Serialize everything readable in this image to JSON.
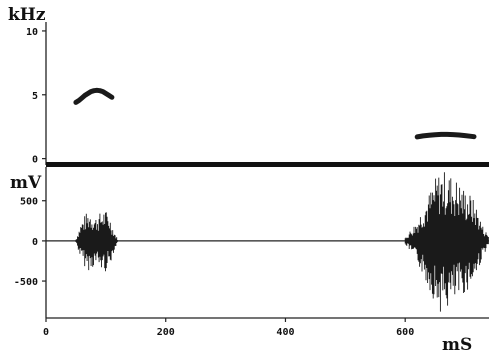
{
  "chart_data": [
    {
      "type": "scatter",
      "title": "",
      "unit_label": "kHz",
      "xlim": [
        0,
        740
      ],
      "ylim": [
        -0.5,
        10.7
      ],
      "y_ticks": [
        {
          "value": 10,
          "label": "10"
        },
        {
          "value": 5,
          "label": "5"
        },
        {
          "value": 0,
          "label": "0"
        }
      ],
      "grid": false,
      "color": "#1a1a1a",
      "series": [
        {
          "x": [
            50,
            55,
            60,
            65,
            70,
            75,
            80,
            85,
            90,
            95,
            100,
            105,
            110
          ],
          "y": [
            4.4,
            4.55,
            4.75,
            4.95,
            5.1,
            5.25,
            5.32,
            5.35,
            5.32,
            5.25,
            5.1,
            4.95,
            4.8
          ]
        },
        {
          "x": [
            620,
            630,
            640,
            650,
            660,
            670,
            680,
            690,
            700,
            710,
            715
          ],
          "y": [
            1.7,
            1.78,
            1.83,
            1.87,
            1.9,
            1.9,
            1.88,
            1.85,
            1.8,
            1.75,
            1.72
          ]
        }
      ]
    },
    {
      "type": "line",
      "title": "",
      "unit_label": "mV",
      "xlabel": "mS",
      "xlim": [
        0,
        740
      ],
      "ylim": [
        -960,
        920
      ],
      "y_ticks": [
        {
          "value": 500,
          "label": "500"
        },
        {
          "value": 0,
          "label": "0"
        },
        {
          "value": -500,
          "label": "-500"
        }
      ],
      "x_ticks": [
        {
          "value": 0,
          "label": "0"
        },
        {
          "value": 200,
          "label": "200"
        },
        {
          "value": 400,
          "label": "400"
        },
        {
          "value": 600,
          "label": "600"
        }
      ],
      "grid": false,
      "color": "#1a1a1a",
      "segments": [
        {
          "x": [
            50,
            58,
            66,
            74,
            82,
            90,
            98,
            106,
            114,
            120
          ],
          "amplitude": [
            20,
            220,
            340,
            380,
            300,
            350,
            400,
            320,
            120,
            20
          ]
        },
        {
          "x": [
            600,
            610,
            620,
            630,
            640,
            650,
            660,
            670,
            680,
            690,
            700,
            710,
            720,
            730,
            740
          ],
          "amplitude": [
            40,
            150,
            260,
            450,
            600,
            780,
            900,
            860,
            820,
            740,
            650,
            580,
            420,
            180,
            60
          ]
        }
      ]
    }
  ]
}
